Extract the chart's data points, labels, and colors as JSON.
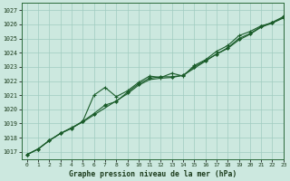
{
  "title": "Graphe pression niveau de la mer (hPa)",
  "xlim": [
    -0.5,
    23
  ],
  "ylim": [
    1016.5,
    1027.5
  ],
  "yticks": [
    1017,
    1018,
    1019,
    1020,
    1021,
    1022,
    1023,
    1024,
    1025,
    1026,
    1027
  ],
  "xticks": [
    0,
    1,
    2,
    3,
    4,
    5,
    6,
    7,
    8,
    9,
    10,
    11,
    12,
    13,
    14,
    15,
    16,
    17,
    18,
    19,
    20,
    21,
    22,
    23
  ],
  "background_color": "#cce8df",
  "grid_color": "#a0ccc0",
  "line_color": "#1a5c2a",
  "line1": [
    1016.8,
    1017.2,
    1017.8,
    1018.3,
    1018.7,
    1019.1,
    1019.6,
    1020.1,
    1020.6,
    1021.1,
    1021.7,
    1022.1,
    1022.2,
    1022.25,
    1022.4,
    1022.9,
    1023.4,
    1023.9,
    1024.3,
    1024.9,
    1025.3,
    1025.8,
    1026.1,
    1026.5
  ],
  "line2_x": [
    0,
    1,
    2,
    3,
    4,
    5,
    6,
    7,
    8,
    9,
    10,
    11,
    12,
    13,
    14,
    15,
    16,
    17,
    18,
    19,
    20,
    21,
    22,
    23
  ],
  "line2": [
    1016.8,
    1017.2,
    1017.8,
    1018.3,
    1018.65,
    1019.15,
    1019.7,
    1020.3,
    1020.55,
    1021.2,
    1021.8,
    1022.2,
    1022.3,
    1022.3,
    1022.4,
    1023.0,
    1023.45,
    1023.9,
    1024.35,
    1025.0,
    1025.35,
    1025.85,
    1026.15,
    1026.55
  ],
  "line3_x": [
    0,
    1,
    2,
    3,
    4,
    5,
    6,
    7,
    8,
    9,
    10,
    11,
    12,
    13,
    14,
    15,
    16,
    17,
    18,
    19,
    20,
    21,
    22,
    23
  ],
  "line3": [
    1016.8,
    1017.2,
    1017.8,
    1018.3,
    1018.7,
    1019.15,
    1021.0,
    1021.55,
    1020.9,
    1021.3,
    1021.9,
    1022.35,
    1022.25,
    1022.55,
    1022.35,
    1023.1,
    1023.5,
    1024.1,
    1024.5,
    1025.2,
    1025.5,
    1025.9,
    1026.1,
    1026.45
  ]
}
